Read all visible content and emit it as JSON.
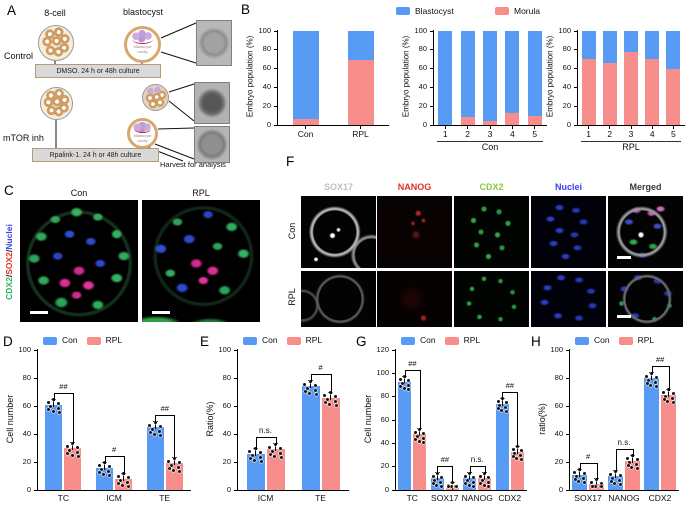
{
  "colors": {
    "blue": "#579BF5",
    "pink": "#F78E8B"
  },
  "panels": {
    "A": {
      "letter": "A",
      "eight_cell": "8-cell",
      "blastocyst": "blastocyst",
      "control": "Control",
      "mtor": "mTOR inh",
      "dmso": "DMSO. 24 h or 48h culture",
      "rpalink": "Rpalink-1. 24 h or 48h culture",
      "harvest": "Harvest for analysis",
      "cavity": "blastocyst cavity"
    },
    "B": {
      "letter": "B",
      "legend": [
        {
          "label": "Blastocyst",
          "color": "#579BF5"
        },
        {
          "label": "Morula",
          "color": "#F78E8B"
        }
      ]
    },
    "C": {
      "letter": "C",
      "con": "Con",
      "rpl": "RPL",
      "label_parts": [
        {
          "text": "CDX2",
          "color": "#2FB457"
        },
        {
          "text": "/",
          "color": "#222222"
        },
        {
          "text": "SOX2",
          "color": "#E8342C"
        },
        {
          "text": "/",
          "color": "#222222"
        },
        {
          "text": "Nuclei",
          "color": "#3844D8"
        }
      ]
    },
    "D": {
      "letter": "D"
    },
    "E": {
      "letter": "E"
    },
    "F": {
      "letter": "F",
      "columns": [
        {
          "label": "SOX17",
          "color": "#C0C0C0"
        },
        {
          "label": "NANOG",
          "color": "#E03028"
        },
        {
          "label": "CDX2",
          "color": "#8FC63F"
        },
        {
          "label": "Nuclei",
          "color": "#3A43E0"
        },
        {
          "label": "Merged",
          "color": "#3A3A3A"
        }
      ],
      "rows": [
        "Con",
        "RPL"
      ]
    },
    "G": {
      "letter": "G"
    },
    "H": {
      "letter": "H"
    }
  },
  "chart_data": [
    {
      "id": "B1",
      "type": "stacked-bar",
      "ylabel": "Embryo population (%)",
      "ylim": [
        0,
        100
      ],
      "yticks": [
        0,
        20,
        40,
        60,
        80,
        100
      ],
      "categories": [
        "Con",
        "RPL"
      ],
      "series": [
        {
          "name": "Blastocyst",
          "color": "#579BF5",
          "values": [
            94,
            31
          ]
        },
        {
          "name": "Morula",
          "color": "#F78E8B",
          "values": [
            6,
            69
          ]
        }
      ]
    },
    {
      "id": "B2",
      "type": "stacked-bar",
      "ylabel": "Embryo population (%)",
      "ylim": [
        0,
        100
      ],
      "yticks": [
        0,
        20,
        40,
        60,
        80,
        100
      ],
      "categories": [
        "1",
        "2",
        "3",
        "4",
        "5"
      ],
      "group_label": "Con",
      "series": [
        {
          "name": "Blastocyst",
          "color": "#579BF5",
          "values": [
            100,
            92,
            96,
            87,
            90
          ]
        },
        {
          "name": "Morula",
          "color": "#F78E8B",
          "values": [
            0,
            8,
            4,
            13,
            10
          ]
        }
      ]
    },
    {
      "id": "B3",
      "type": "stacked-bar",
      "ylabel": "Embryo population (%)",
      "ylim": [
        0,
        100
      ],
      "yticks": [
        0,
        20,
        40,
        60,
        80,
        100
      ],
      "categories": [
        "1",
        "2",
        "3",
        "4",
        "5"
      ],
      "group_label": "RPL",
      "series": [
        {
          "name": "Blastocyst",
          "color": "#579BF5",
          "values": [
            30,
            34,
            22,
            30,
            40
          ]
        },
        {
          "name": "Morula",
          "color": "#F78E8B",
          "values": [
            70,
            66,
            78,
            70,
            60
          ]
        }
      ]
    },
    {
      "id": "D",
      "type": "grouped-bar",
      "ylabel": "Cell number",
      "ylim": [
        0,
        100
      ],
      "yticks": [
        0,
        20,
        40,
        60,
        80,
        100
      ],
      "categories": [
        "TC",
        "ICM",
        "TE"
      ],
      "series": [
        {
          "name": "Con",
          "color": "#579BF5",
          "values": [
            61,
            16,
            45
          ]
        },
        {
          "name": "RPL",
          "color": "#F78E8B",
          "values": [
            30,
            8,
            19
          ]
        }
      ],
      "significance": [
        "##",
        "#",
        "##"
      ]
    },
    {
      "id": "E",
      "type": "grouped-bar",
      "ylabel": "Ratio(%)",
      "ylim": [
        0,
        100
      ],
      "yticks": [
        0,
        20,
        40,
        60,
        80,
        100
      ],
      "categories": [
        "ICM",
        "TE"
      ],
      "series": [
        {
          "name": "Con",
          "color": "#579BF5",
          "values": [
            26,
            74
          ]
        },
        {
          "name": "RPL",
          "color": "#F78E8B",
          "values": [
            29,
            66
          ]
        }
      ],
      "significance": [
        "n.s.",
        "#"
      ]
    },
    {
      "id": "G",
      "type": "grouped-bar",
      "ylabel": "Cell number",
      "ylim": [
        0,
        120
      ],
      "yticks": [
        0,
        20,
        40,
        60,
        80,
        100,
        120
      ],
      "categories": [
        "TC",
        "SOX17",
        "NANOG",
        "CDX2"
      ],
      "series": [
        {
          "name": "Con",
          "color": "#579BF5",
          "values": [
            93,
            10,
            10,
            74
          ]
        },
        {
          "name": "RPL",
          "color": "#F78E8B",
          "values": [
            48,
            2,
            10,
            33
          ]
        }
      ],
      "significance": [
        "##",
        "##",
        "n.s.",
        "##"
      ]
    },
    {
      "id": "H",
      "type": "grouped-bar",
      "ylabel": "ratio(%)",
      "ylim": [
        0,
        100
      ],
      "yticks": [
        0,
        20,
        40,
        60,
        80,
        100
      ],
      "categories": [
        "SOX17",
        "NANOG",
        "CDX2"
      ],
      "series": [
        {
          "name": "Con",
          "color": "#579BF5",
          "values": [
            11,
            10,
            80
          ]
        },
        {
          "name": "RPL",
          "color": "#F78E8B",
          "values": [
            4,
            21,
            68
          ]
        }
      ],
      "significance": [
        "#",
        "n.s.",
        "##"
      ]
    }
  ]
}
